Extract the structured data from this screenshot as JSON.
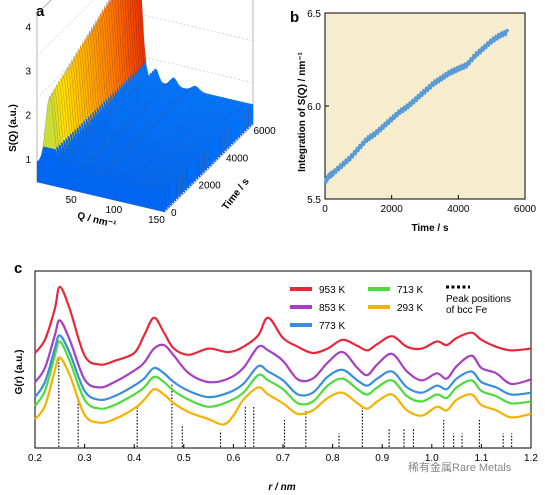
{
  "figure": {
    "panel_labels": [
      "a",
      "b",
      "c"
    ],
    "watermark": "稀有金属Rare Metals"
  },
  "chart_data": [
    {
      "panel": "a",
      "type": "area",
      "title": "",
      "zlabel": "S(Q) (a.u.)",
      "xlabel": "Q / nm⁻¹",
      "ylabel": "Time / s",
      "x_ticks": [
        "50",
        "100",
        "150"
      ],
      "y_ticks": [
        "0",
        "2000",
        "4000",
        "6000"
      ],
      "z_ticks": [
        "1",
        "2",
        "3",
        "4"
      ],
      "zlim": [
        0.5,
        4.3
      ],
      "colormap": [
        "#0033cc",
        "#0077ff",
        "#00ccff",
        "#ffe000",
        "#ff7700",
        "#dd0000"
      ]
    },
    {
      "panel": "b",
      "type": "line",
      "xlabel": "Time / s",
      "ylabel": "Integration of S(Q) / nm⁻¹",
      "xlim": [
        0,
        6000
      ],
      "ylim": [
        5.5,
        6.5
      ],
      "x_ticks": [
        0,
        2000,
        4000,
        6000
      ],
      "y_ticks": [
        5.5,
        6.0,
        6.5
      ],
      "background": "#f6edcf",
      "series": [
        {
          "color": "#5b9bd5",
          "x": [
            0,
            100,
            250,
            500,
            750,
            1000,
            1250,
            1500,
            1750,
            2000,
            2250,
            2500,
            2750,
            3000,
            3250,
            3500,
            3750,
            4000,
            4250,
            4500,
            4750,
            5000,
            5250,
            5500
          ],
          "y": [
            5.59,
            5.62,
            5.64,
            5.68,
            5.72,
            5.77,
            5.82,
            5.85,
            5.89,
            5.93,
            5.97,
            6.0,
            6.04,
            6.08,
            6.12,
            6.15,
            6.18,
            6.2,
            6.22,
            6.27,
            6.31,
            6.35,
            6.38,
            6.4
          ]
        }
      ]
    },
    {
      "panel": "c",
      "type": "line",
      "xlabel": "r / nm",
      "ylabel": "G(r) (a.u.)",
      "xlim": [
        0.2,
        1.2
      ],
      "x_ticks": [
        0.2,
        0.3,
        0.4,
        0.5,
        0.6,
        0.7,
        0.8,
        0.9,
        1.0,
        1.1,
        1.2
      ],
      "legend_position": "top-right",
      "series": [
        {
          "name": "953 K",
          "color": "#e8283a",
          "x": [
            0.2,
            0.22,
            0.24,
            0.25,
            0.27,
            0.3,
            0.33,
            0.36,
            0.4,
            0.42,
            0.44,
            0.46,
            0.48,
            0.51,
            0.55,
            0.59,
            0.62,
            0.65,
            0.67,
            0.7,
            0.73,
            0.76,
            0.79,
            0.82,
            0.85,
            0.87,
            0.89,
            0.92,
            0.95,
            0.98,
            1.01,
            1.03,
            1.05,
            1.08,
            1.1,
            1.13,
            1.16,
            1.2
          ],
          "y": [
            0.55,
            0.7,
            1.05,
            1.3,
            1.05,
            0.52,
            0.42,
            0.46,
            0.55,
            0.75,
            0.95,
            0.78,
            0.6,
            0.53,
            0.6,
            0.56,
            0.62,
            0.75,
            0.95,
            0.72,
            0.62,
            0.55,
            0.6,
            0.7,
            0.63,
            0.58,
            0.65,
            0.74,
            0.62,
            0.6,
            0.68,
            0.64,
            0.72,
            0.78,
            0.7,
            0.62,
            0.58,
            0.6
          ]
        },
        {
          "name": "853 K",
          "color": "#a73fc4",
          "x": [
            0.2,
            0.22,
            0.24,
            0.25,
            0.27,
            0.3,
            0.33,
            0.36,
            0.4,
            0.42,
            0.44,
            0.46,
            0.48,
            0.51,
            0.55,
            0.59,
            0.62,
            0.65,
            0.67,
            0.7,
            0.73,
            0.76,
            0.79,
            0.82,
            0.85,
            0.87,
            0.89,
            0.92,
            0.95,
            0.98,
            1.01,
            1.03,
            1.05,
            1.08,
            1.1,
            1.13,
            1.16,
            1.2
          ],
          "y": [
            0.22,
            0.38,
            0.75,
            0.92,
            0.7,
            0.25,
            0.16,
            0.22,
            0.35,
            0.44,
            0.6,
            0.64,
            0.52,
            0.32,
            0.22,
            0.26,
            0.38,
            0.62,
            0.58,
            0.46,
            0.25,
            0.26,
            0.44,
            0.56,
            0.38,
            0.3,
            0.42,
            0.54,
            0.34,
            0.24,
            0.32,
            0.26,
            0.4,
            0.52,
            0.38,
            0.32,
            0.2,
            0.25
          ]
        },
        {
          "name": "773 K",
          "color": "#3a8fdc",
          "x": [
            0.2,
            0.22,
            0.24,
            0.25,
            0.27,
            0.3,
            0.33,
            0.36,
            0.4,
            0.42,
            0.44,
            0.46,
            0.48,
            0.51,
            0.55,
            0.59,
            0.62,
            0.65,
            0.67,
            0.7,
            0.73,
            0.76,
            0.79,
            0.82,
            0.85,
            0.87,
            0.89,
            0.92,
            0.95,
            0.98,
            1.01,
            1.03,
            1.05,
            1.08,
            1.1,
            1.13,
            1.16,
            1.2
          ],
          "y": [
            0.05,
            0.22,
            0.6,
            0.75,
            0.55,
            0.12,
            0.02,
            0.06,
            0.18,
            0.26,
            0.38,
            0.32,
            0.22,
            0.12,
            0.05,
            0.1,
            0.2,
            0.4,
            0.34,
            0.24,
            0.08,
            0.1,
            0.28,
            0.36,
            0.24,
            0.18,
            0.26,
            0.34,
            0.16,
            0.1,
            0.18,
            0.14,
            0.26,
            0.34,
            0.22,
            0.16,
            0.08,
            0.1
          ]
        },
        {
          "name": "713 K",
          "color": "#4ddc3c",
          "x": [
            0.2,
            0.22,
            0.24,
            0.25,
            0.27,
            0.3,
            0.33,
            0.36,
            0.4,
            0.42,
            0.44,
            0.46,
            0.48,
            0.51,
            0.55,
            0.59,
            0.62,
            0.65,
            0.67,
            0.7,
            0.73,
            0.76,
            0.79,
            0.82,
            0.85,
            0.87,
            0.89,
            0.92,
            0.95,
            0.98,
            1.01,
            1.03,
            1.05,
            1.08,
            1.1,
            1.13,
            1.16,
            1.2
          ],
          "y": [
            -0.05,
            0.12,
            0.52,
            0.68,
            0.46,
            0.02,
            -0.08,
            -0.04,
            0.08,
            0.16,
            0.28,
            0.22,
            0.12,
            0.02,
            -0.06,
            0.0,
            0.1,
            0.3,
            0.24,
            0.14,
            -0.02,
            0.0,
            0.18,
            0.26,
            0.14,
            0.08,
            0.16,
            0.24,
            0.06,
            0.0,
            0.08,
            0.04,
            0.16,
            0.24,
            0.12,
            0.06,
            -0.02,
            0.0
          ]
        },
        {
          "name": "293 K",
          "color": "#f5b200",
          "x": [
            0.2,
            0.22,
            0.24,
            0.25,
            0.27,
            0.3,
            0.33,
            0.36,
            0.4,
            0.42,
            0.44,
            0.46,
            0.48,
            0.51,
            0.55,
            0.58,
            0.6,
            0.62,
            0.65,
            0.67,
            0.7,
            0.73,
            0.76,
            0.79,
            0.82,
            0.85,
            0.87,
            0.89,
            0.92,
            0.95,
            0.98,
            1.01,
            1.03,
            1.05,
            1.08,
            1.1,
            1.13,
            1.16,
            1.2
          ],
          "y": [
            -0.2,
            -0.05,
            0.35,
            0.5,
            0.3,
            -0.15,
            -0.24,
            -0.2,
            -0.08,
            0.02,
            0.14,
            0.08,
            -0.02,
            -0.12,
            -0.2,
            -0.26,
            -0.16,
            0.02,
            0.16,
            0.08,
            -0.02,
            -0.14,
            -0.1,
            0.04,
            0.1,
            -0.02,
            -0.08,
            0.0,
            0.08,
            -0.1,
            -0.16,
            -0.06,
            -0.1,
            0.02,
            0.08,
            -0.04,
            -0.1,
            -0.18,
            -0.14
          ]
        }
      ],
      "peak_legend": "Peak positions\nof bcc Fe",
      "peaks": [
        {
          "r": 0.248,
          "h": 1.0
        },
        {
          "r": 0.287,
          "h": 0.55
        },
        {
          "r": 0.406,
          "h": 0.45
        },
        {
          "r": 0.476,
          "h": 0.7
        },
        {
          "r": 0.497,
          "h": 0.25
        },
        {
          "r": 0.574,
          "h": 0.18
        },
        {
          "r": 0.624,
          "h": 0.45
        },
        {
          "r": 0.641,
          "h": 0.45
        },
        {
          "r": 0.703,
          "h": 0.3
        },
        {
          "r": 0.746,
          "h": 0.4
        },
        {
          "r": 0.813,
          "h": 0.15
        },
        {
          "r": 0.86,
          "h": 0.45
        },
        {
          "r": 0.914,
          "h": 0.2
        },
        {
          "r": 0.944,
          "h": 0.2
        },
        {
          "r": 0.963,
          "h": 0.2
        },
        {
          "r": 1.024,
          "h": 0.3
        },
        {
          "r": 1.044,
          "h": 0.15
        },
        {
          "r": 1.061,
          "h": 0.15
        },
        {
          "r": 1.096,
          "h": 0.3
        },
        {
          "r": 1.144,
          "h": 0.15
        },
        {
          "r": 1.161,
          "h": 0.15
        }
      ]
    }
  ]
}
